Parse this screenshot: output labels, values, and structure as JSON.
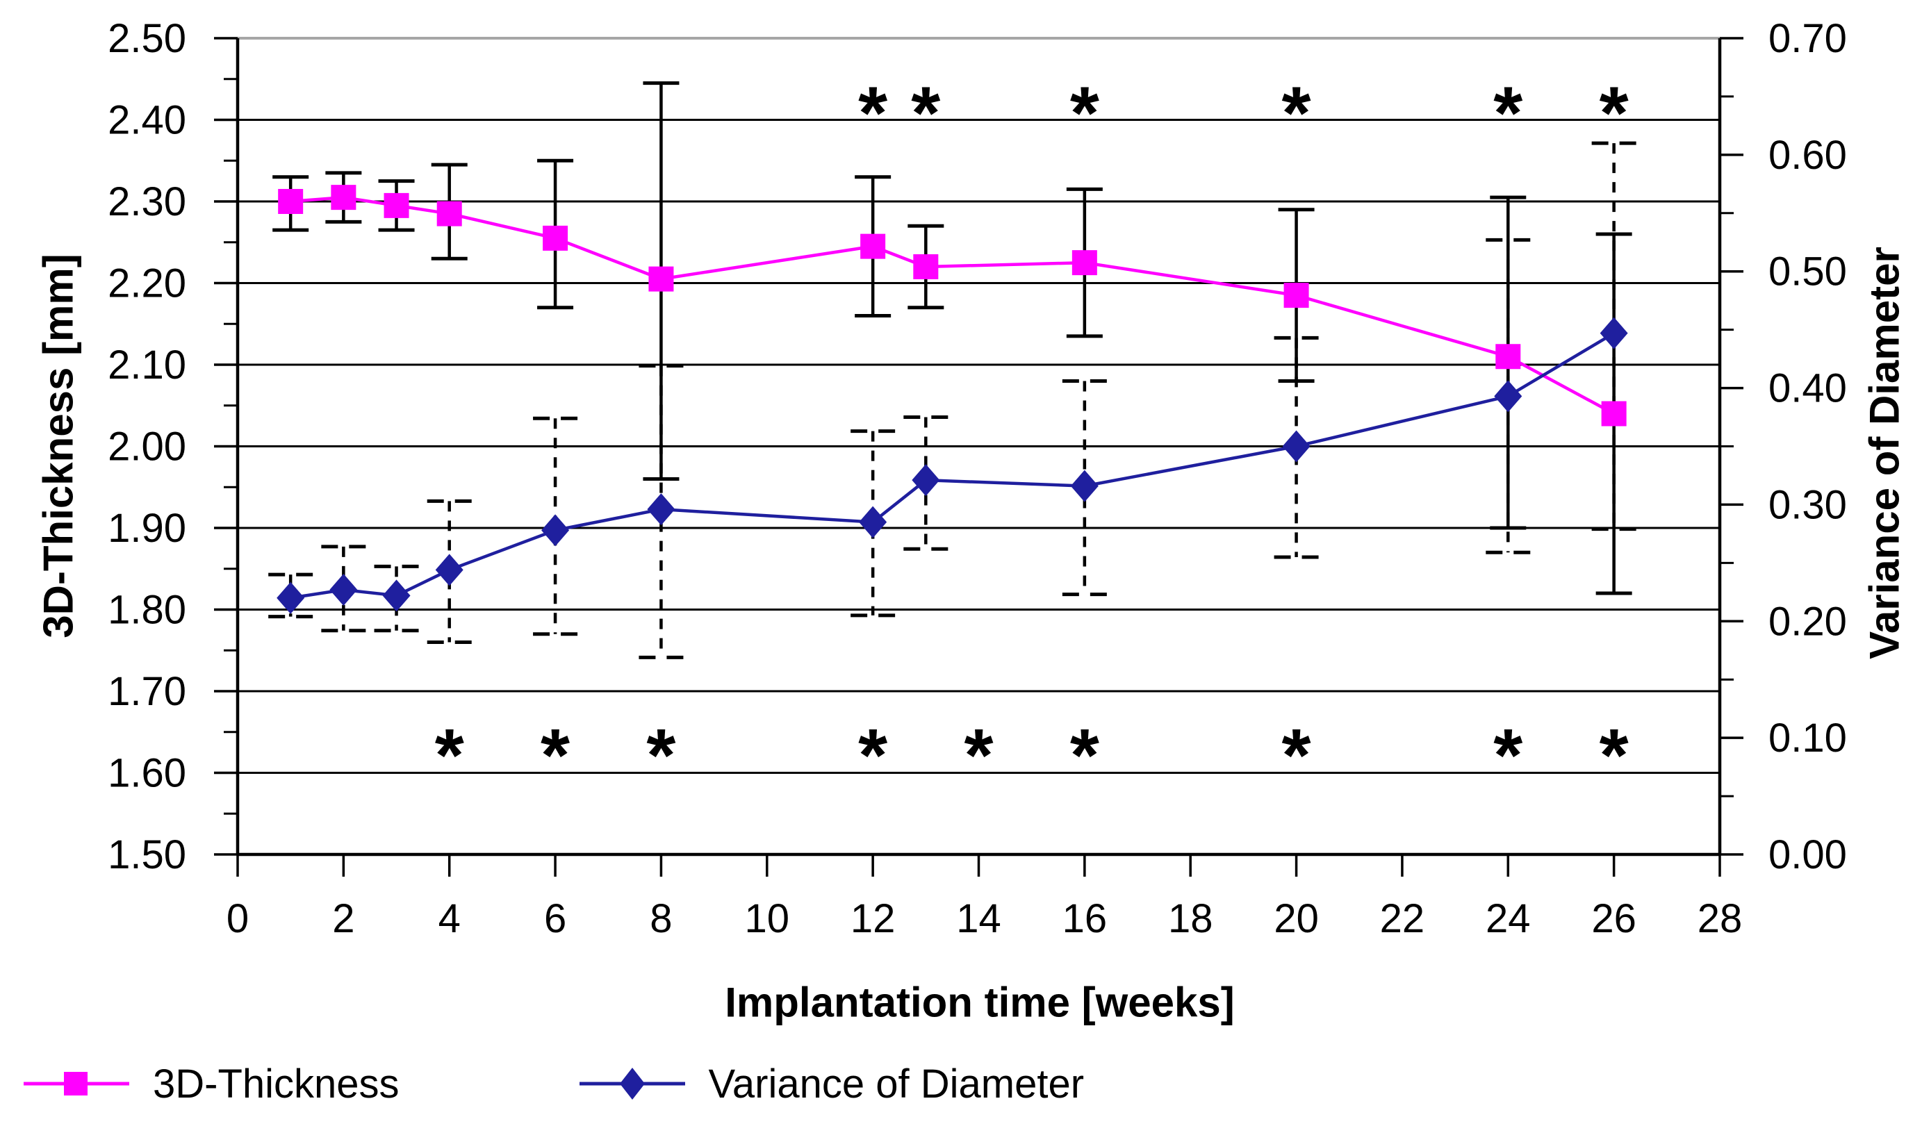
{
  "chart_data": {
    "type": "line",
    "title": "",
    "x_axis": {
      "label": "Implantation time [weeks]",
      "min": 0,
      "max": 28,
      "tick_step": 2
    },
    "y_axis_left": {
      "label": "3D-Thickness [mm]",
      "min": 1.5,
      "max": 2.5,
      "tick_step": 0.1,
      "decimals": 2
    },
    "y_axis_right": {
      "label": "Variance of Diameter",
      "min": 0.0,
      "max": 0.7,
      "tick_step": 0.1,
      "decimals": 2
    },
    "grid": "horizontal-only",
    "legend_position": "bottom-left",
    "x": [
      1,
      2,
      3,
      4,
      6,
      8,
      12,
      13,
      16,
      20,
      24,
      26
    ],
    "series": [
      {
        "name": "3D-Thickness",
        "axis": "left",
        "marker": "square",
        "line_style": "solid",
        "error_bar_style": "solid",
        "values": [
          2.3,
          2.305,
          2.295,
          2.285,
          2.255,
          2.205,
          2.245,
          2.22,
          2.225,
          2.185,
          2.11,
          2.04
        ],
        "err_upper": [
          2.33,
          2.335,
          2.325,
          2.345,
          2.35,
          2.445,
          2.33,
          2.27,
          2.315,
          2.29,
          2.305,
          2.26
        ],
        "err_lower": [
          2.265,
          2.275,
          2.265,
          2.23,
          2.17,
          1.96,
          2.16,
          2.17,
          2.135,
          2.08,
          1.9,
          1.82
        ]
      },
      {
        "name": "Variance of Diameter",
        "axis": "right",
        "marker": "diamond",
        "line_style": "solid",
        "error_bar_style": "dashed",
        "values": [
          0.22,
          0.227,
          0.222,
          0.244,
          0.278,
          0.296,
          0.285,
          0.321,
          0.316,
          0.35,
          0.393,
          0.447
        ],
        "err_upper": [
          0.24,
          0.264,
          0.247,
          0.303,
          0.374,
          0.419,
          0.363,
          0.375,
          0.406,
          0.443,
          0.527,
          0.61
        ],
        "err_lower": [
          0.204,
          0.192,
          0.192,
          0.182,
          0.189,
          0.169,
          0.205,
          0.262,
          0.223,
          0.255,
          0.259,
          0.279
        ]
      }
    ],
    "significance_markers": {
      "symbol": "*",
      "top_row_weeks": [
        12,
        13,
        16,
        20,
        24,
        26
      ],
      "top_row_value_left_axis": 2.435,
      "bottom_row_weeks": [
        4,
        6,
        8,
        12,
        14,
        16,
        20,
        24,
        26
      ],
      "bottom_row_value_left_axis": 1.648
    }
  },
  "colors": {
    "thickness_series": "#ff00ff",
    "variance_series": "#1f1f9e",
    "error_bars": "#000000",
    "gridlines": "#000000",
    "top_border": "#a6a6a6",
    "axis_text": "#000000",
    "background": "#ffffff"
  }
}
